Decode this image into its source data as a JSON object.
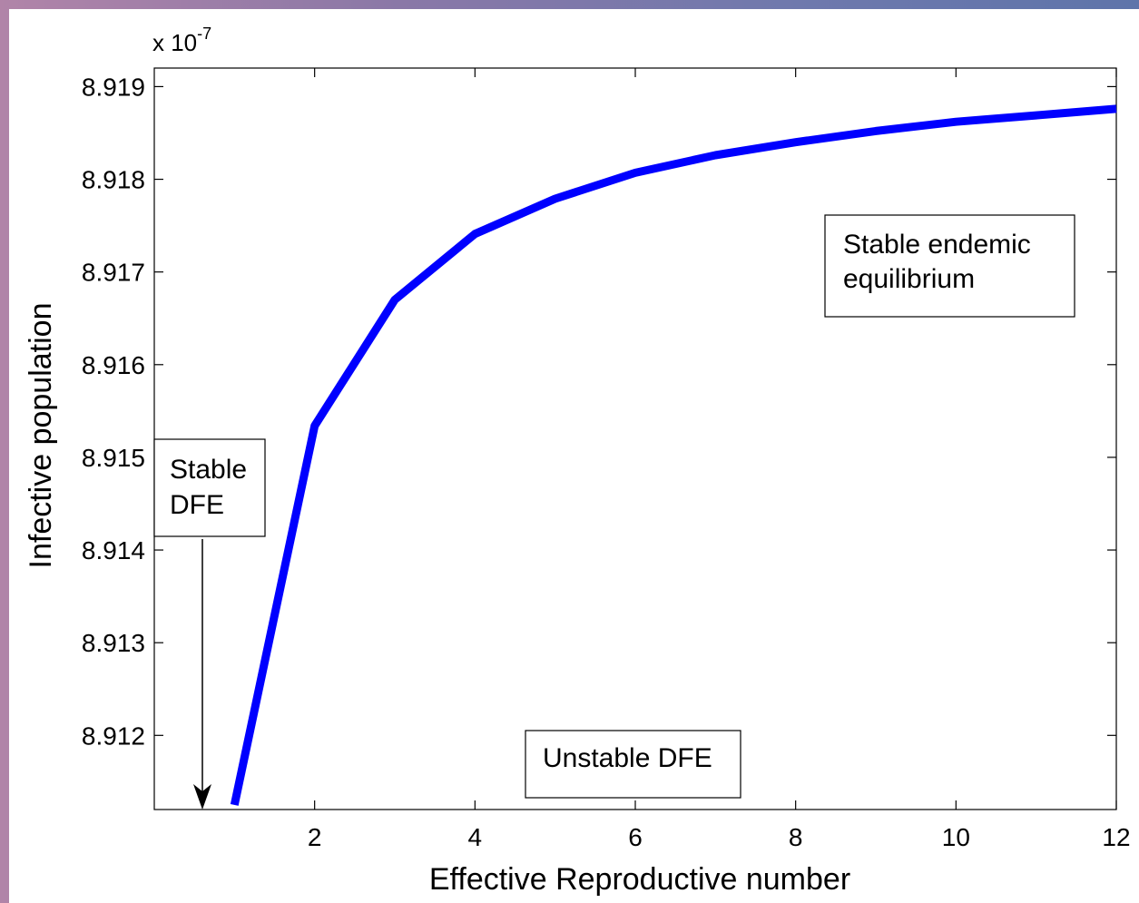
{
  "chart_data": {
    "type": "line",
    "title": "",
    "xlabel": "Effective Reproductive number",
    "ylabel": "Infective population",
    "y_multiplier": {
      "base": "x 10",
      "exponent": "-7"
    },
    "xlim": [
      0.0,
      12.0
    ],
    "ylim": [
      8.9112,
      8.9192
    ],
    "x_ticks": [
      2,
      4,
      6,
      8,
      10,
      12
    ],
    "y_ticks": [
      8.912,
      8.913,
      8.914,
      8.915,
      8.916,
      8.917,
      8.918,
      8.919
    ],
    "x_tick_labels": [
      "2",
      "4",
      "6",
      "8",
      "10",
      "12"
    ],
    "y_tick_labels": [
      "8.912",
      "8.913",
      "8.914",
      "8.915",
      "8.916",
      "8.917",
      "8.918",
      "8.919"
    ],
    "series": [
      {
        "color": "#0000ff",
        "x": [
          1,
          2,
          3,
          4,
          5,
          6,
          7,
          8,
          9,
          10,
          11,
          12
        ],
        "y": [
          8.91125,
          8.91534,
          8.9167,
          8.91741,
          8.91779,
          8.91807,
          8.91826,
          8.9184,
          8.91852,
          8.91862,
          8.91869,
          8.91876
        ]
      }
    ],
    "annotations": [
      {
        "id": "stable-endemic",
        "lines": [
          "Stable endemic",
          "equilibrium"
        ]
      },
      {
        "id": "stable-dfe",
        "lines": [
          "Stable",
          "DFE"
        ]
      },
      {
        "id": "unstable-dfe",
        "lines": [
          "Unstable DFE"
        ]
      }
    ],
    "arrow_target_x": 0.6,
    "grid": false,
    "box": true
  }
}
